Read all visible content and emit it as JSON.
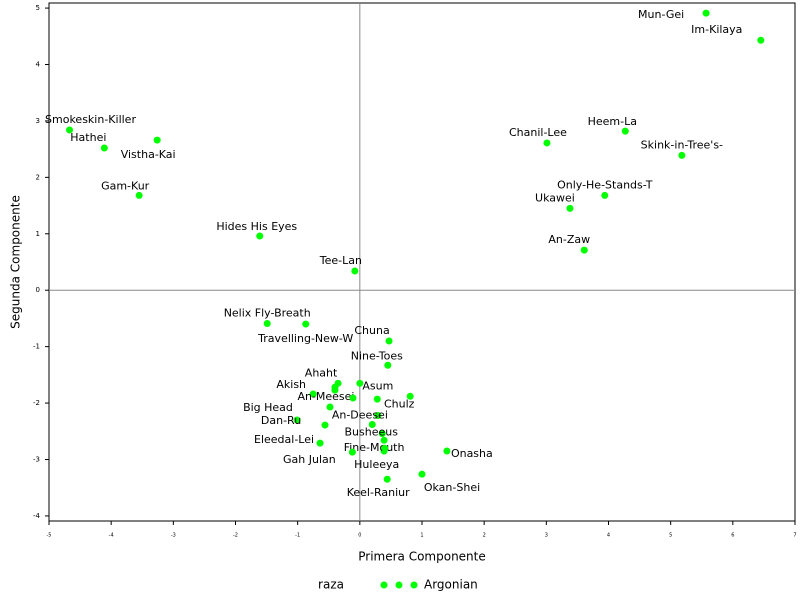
{
  "chart_data": {
    "type": "scatter",
    "x_label": "Primera Componente",
    "y_label": "Segunda Componente",
    "xlim": [
      -5,
      7
    ],
    "ylim": [
      -4.09,
      5.09
    ],
    "xticks": [
      -5,
      -4,
      -3,
      -2,
      -1,
      0,
      1,
      2,
      3,
      4,
      5,
      6,
      7
    ],
    "yticks": [
      -4,
      -3,
      -2,
      -1,
      0,
      1,
      2,
      3,
      4,
      5
    ],
    "legend_title": "raza",
    "series": [
      {
        "name": "Argonian",
        "color": "#00ff00",
        "x": [
          5.57,
          6.45,
          -4.67,
          -4.11,
          -3.26,
          -3.55,
          -1.61,
          -0.08,
          4.27,
          3.01,
          5.18,
          3.94,
          3.38,
          3.61,
          -1.49,
          -0.87,
          0.47,
          0.45,
          -0.35,
          -0.75,
          0.0,
          -0.4,
          -0.4,
          0.81,
          -0.11,
          0.28,
          -0.48,
          0.29,
          -1.01,
          -0.56,
          0.2,
          0.36,
          0.39,
          -0.64,
          0.39,
          -0.12,
          1.4,
          0.4,
          1.0,
          0.44
        ],
        "values": [
          4.91,
          4.43,
          2.84,
          2.52,
          2.66,
          1.68,
          0.96,
          0.34,
          2.82,
          2.61,
          2.39,
          1.68,
          1.45,
          0.71,
          -0.59,
          -0.6,
          -0.9,
          -1.33,
          -1.65,
          -1.84,
          -1.65,
          -1.77,
          -1.72,
          -1.88,
          -1.91,
          -1.93,
          -2.07,
          -2.22,
          -2.3,
          -2.39,
          -2.38,
          -2.54,
          -2.66,
          -2.71,
          -2.85,
          -2.87,
          -2.85,
          -2.8,
          -3.26,
          -3.35
        ],
        "labels": [
          "Mun-Gei",
          "Im-Kilaya",
          "Smokeskin-Killer",
          "Hathei",
          "Vistha-Kai",
          "Gam-Kur",
          "Hides His Eyes",
          "Tee-Lan",
          "Heem-La",
          "Chanil-Lee",
          "Skink-in-Tree's-",
          "Only-He-Stands-T",
          "Ukawei",
          "An-Zaw",
          "Nelix Fly-Breath",
          "Travelling-New-W",
          "Chuna",
          "Nine-Toes",
          "Ahaht",
          "Akish",
          "Asum",
          "An-Meesei",
          null,
          "Chulz",
          null,
          null,
          "Big Head",
          "An-Deesei",
          "Dan-Ru",
          null,
          null,
          "Busheeus",
          null,
          "Eleedal-Lei",
          "Fine-Mouth",
          "Gah Julan",
          "Onasha",
          "Huleeya",
          "Okan-Shei",
          "Keel-Raniur"
        ]
      }
    ]
  }
}
